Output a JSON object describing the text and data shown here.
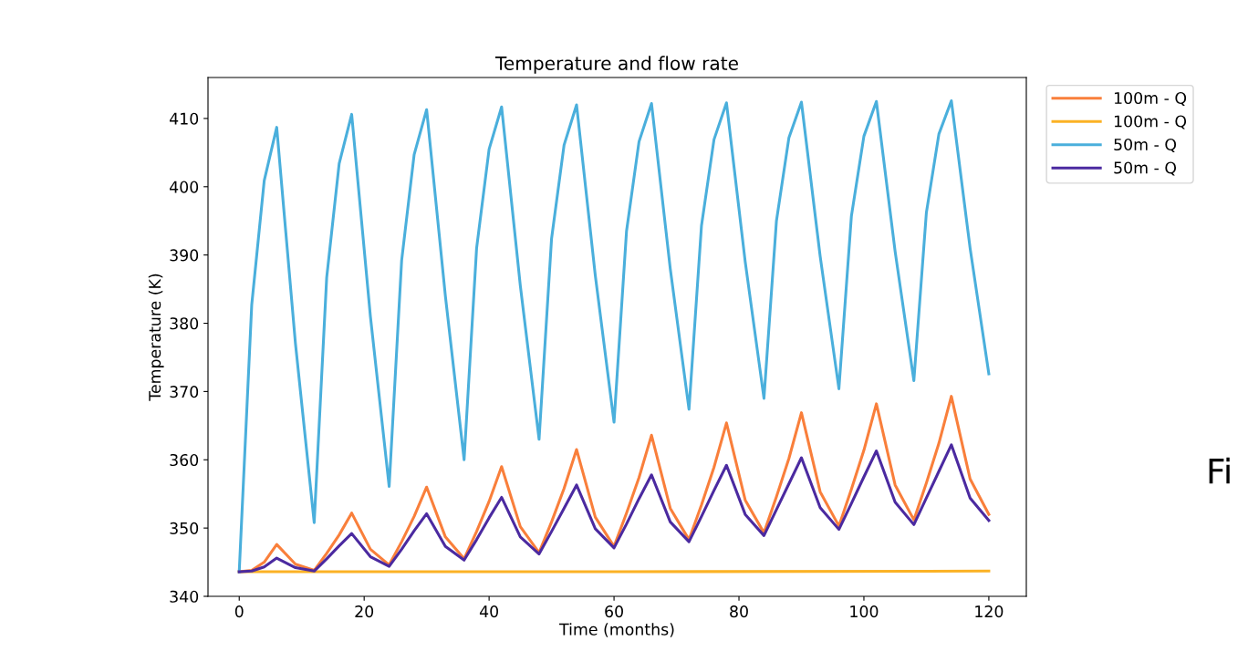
{
  "chart_data": {
    "type": "line",
    "title": "Temperature and flow rate",
    "xlabel": "Time (months)",
    "ylabel": "Temperature (K)",
    "x": [
      0,
      2,
      4,
      6,
      9,
      12,
      14,
      16,
      18,
      21,
      24,
      26,
      28,
      30,
      33,
      36,
      38,
      40,
      42,
      45,
      48,
      50,
      52,
      54,
      57,
      60,
      62,
      64,
      66,
      69,
      72,
      74,
      76,
      78,
      81,
      84,
      86,
      88,
      90,
      93,
      96,
      98,
      100,
      102,
      105,
      108,
      110,
      112,
      114,
      117,
      120
    ],
    "xlim": [
      -5,
      126
    ],
    "ylim": [
      340,
      416
    ],
    "xticks": [
      0,
      20,
      40,
      60,
      80,
      100,
      120
    ],
    "yticks": [
      340,
      350,
      360,
      370,
      380,
      390,
      400,
      410
    ],
    "grid": false,
    "legend": "top right",
    "line_style": "solid",
    "annotations": [
      "Fi"
    ],
    "series": [
      {
        "name": "100m - Q",
        "color": "#f97f3b",
        "values": [
          343.6,
          343.8,
          345.0,
          347.6,
          344.7,
          343.8,
          346.3,
          349.0,
          352.2,
          346.9,
          344.6,
          348.0,
          351.7,
          356.0,
          348.7,
          345.5,
          349.5,
          353.9,
          359.0,
          350.2,
          346.4,
          350.9,
          355.8,
          361.5,
          351.6,
          347.3,
          352.2,
          357.4,
          363.6,
          352.9,
          348.3,
          353.4,
          358.9,
          365.4,
          354.1,
          349.3,
          354.6,
          360.2,
          366.9,
          355.3,
          350.3,
          355.7,
          361.4,
          368.2,
          356.3,
          351.2,
          356.6,
          362.4,
          369.3,
          357.2,
          352.0
        ]
      },
      {
        "name": "100m - Q",
        "color": "#fbb225",
        "x": [
          0,
          60,
          120
        ],
        "values": [
          343.6,
          343.6,
          343.7
        ]
      },
      {
        "name": "50m - Q",
        "color": "#4aafdc",
        "values": [
          343.6,
          382.7,
          400.9,
          408.7,
          377.0,
          350.8,
          386.7,
          403.4,
          410.6,
          381.0,
          356.1,
          389.2,
          404.7,
          411.3,
          384.0,
          360.0,
          391.0,
          405.5,
          411.7,
          385.5,
          363.0,
          392.4,
          406.1,
          412.0,
          387.0,
          365.5,
          393.5,
          406.6,
          412.2,
          388.0,
          367.4,
          394.3,
          406.9,
          412.3,
          389.0,
          369.0,
          395.0,
          407.2,
          412.4,
          389.8,
          370.4,
          395.7,
          407.4,
          412.5,
          390.5,
          371.6,
          396.2,
          407.7,
          412.6,
          391.0,
          372.6
        ]
      },
      {
        "name": "50m - Q",
        "color": "#4b2aa0",
        "values": [
          343.6,
          343.7,
          344.3,
          345.6,
          344.2,
          343.7,
          345.5,
          347.4,
          349.2,
          345.8,
          344.4,
          346.9,
          349.6,
          352.1,
          347.3,
          345.3,
          348.3,
          351.5,
          354.5,
          348.7,
          346.2,
          349.5,
          352.9,
          356.3,
          349.9,
          347.1,
          350.6,
          354.3,
          357.8,
          350.9,
          348.0,
          351.7,
          355.5,
          359.2,
          352.0,
          348.9,
          352.7,
          356.5,
          360.3,
          353.0,
          349.8,
          353.6,
          357.5,
          361.3,
          353.8,
          350.5,
          354.4,
          358.3,
          362.2,
          354.4,
          351.1
        ]
      }
    ]
  }
}
